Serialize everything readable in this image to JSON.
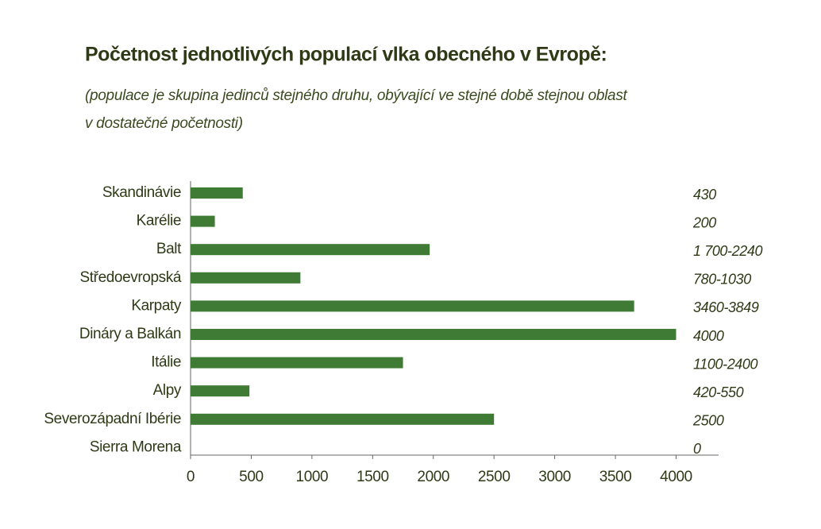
{
  "chart_data": {
    "type": "bar",
    "orientation": "horizontal",
    "title": "Početnost jednotlivých populací vlka obecného v Evropě:",
    "subtitle": [
      "(populace je skupina jedinců stejného druhu, obývající ve stejné době stejnou oblast",
      "v dostatečné početnosti)"
    ],
    "categories": [
      "Skandinávie",
      "Karélie",
      "Balt",
      "Středoevropská",
      "Karpaty",
      "Dináry a Balkán",
      "Itálie",
      "Alpy",
      "Severozápadní Ibérie",
      "Sierra Morena"
    ],
    "values": [
      430,
      200,
      1970,
      905,
      3654.5,
      4000,
      1750,
      485,
      2500,
      0
    ],
    "value_labels": [
      "430",
      "200",
      "1 700-2240",
      "780-1030",
      "3460-3849",
      "4000",
      "1100-2400",
      "420-550",
      "2500",
      "0"
    ],
    "color": "#3f7b35",
    "xlim": [
      0,
      4350
    ],
    "xticks": [
      0,
      500,
      1000,
      1500,
      2000,
      2500,
      3000,
      3500,
      4000
    ]
  }
}
